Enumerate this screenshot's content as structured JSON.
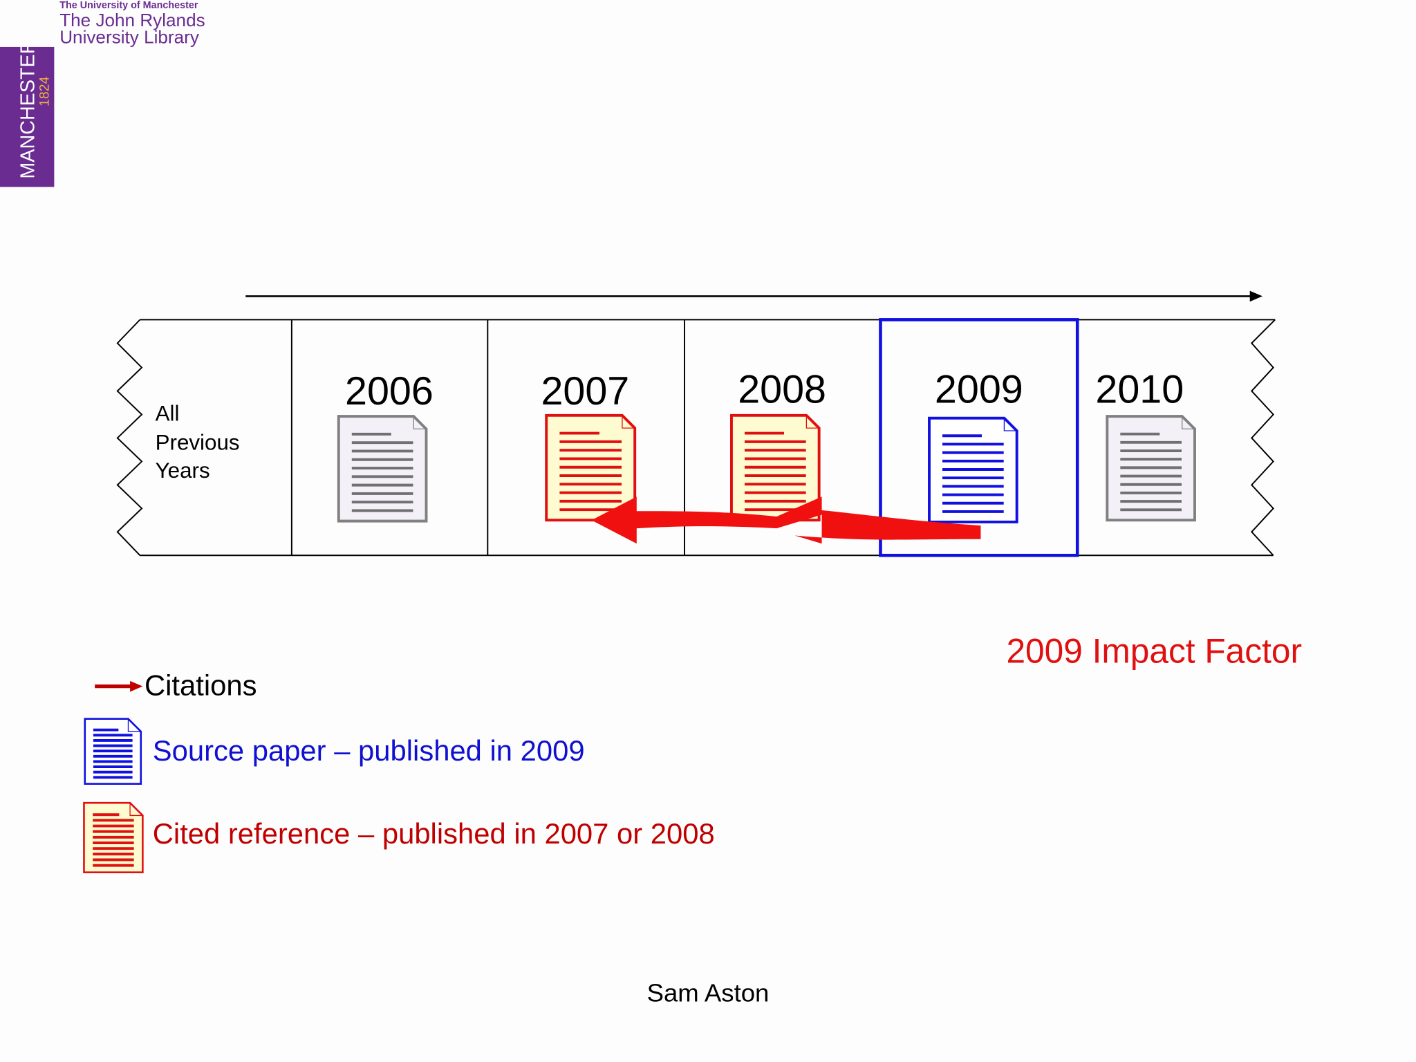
{
  "logo": {
    "university": "The University of Manchester",
    "library_lines": [
      "The John Rylands",
      "University Library"
    ],
    "crest": "MANCHESTER",
    "year": "1824"
  },
  "timeline": {
    "first_cell": [
      "All",
      "Previous",
      "Years"
    ],
    "years": [
      "2006",
      "2007",
      "2008",
      "2009",
      "2010"
    ]
  },
  "title": "2009 Impact Factor",
  "legend": {
    "citations": "Citations",
    "source": "Source paper – published in 2009",
    "cited": "Cited reference – published in 2007 or 2008"
  },
  "footer": "Sam Aston"
}
